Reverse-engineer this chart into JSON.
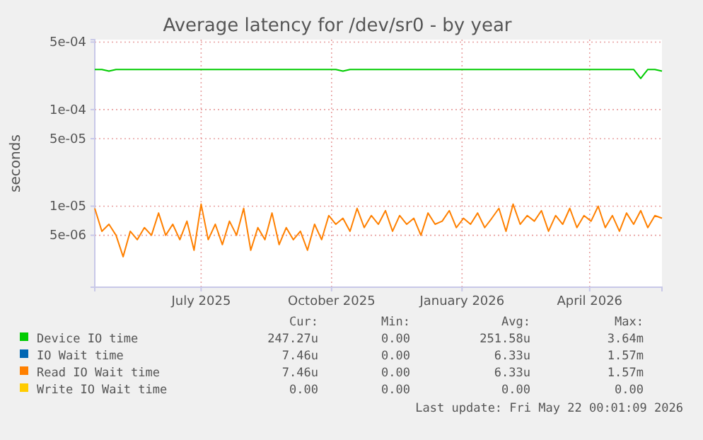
{
  "chart_data": {
    "type": "line",
    "title": "Average latency for /dev/sr0 - by year",
    "ylabel": "seconds",
    "log": true,
    "grid": true,
    "legend": "bottom",
    "xlim": [
      "2025-04-17",
      "2026-05-22"
    ],
    "xticks": [
      {
        "value": "2025-07-01",
        "label": "July 2025"
      },
      {
        "value": "2025-10-01",
        "label": "October 2025"
      },
      {
        "value": "2026-01-01",
        "label": "January 2026"
      },
      {
        "value": "2026-04-01",
        "label": "April 2026"
      }
    ],
    "ylim": [
      1.45e-06,
      0.00053
    ],
    "yticks": [
      {
        "value": 5e-06,
        "label": "5e-06"
      },
      {
        "value": 1e-05,
        "label": "1e-05"
      },
      {
        "value": 5e-05,
        "label": "5e-05"
      },
      {
        "value": 0.0001,
        "label": "1e-04"
      },
      {
        "value": 0.0005,
        "label": "5e-04"
      }
    ],
    "x": [
      "2025-04-17",
      "2025-04-22",
      "2025-04-27",
      "2025-05-02",
      "2025-05-07",
      "2025-05-12",
      "2025-05-17",
      "2025-05-22",
      "2025-05-27",
      "2025-06-01",
      "2025-06-06",
      "2025-06-11",
      "2025-06-16",
      "2025-06-21",
      "2025-06-26",
      "2025-07-01",
      "2025-07-06",
      "2025-07-11",
      "2025-07-16",
      "2025-07-21",
      "2025-07-26",
      "2025-07-31",
      "2025-08-05",
      "2025-08-10",
      "2025-08-15",
      "2025-08-20",
      "2025-08-25",
      "2025-08-30",
      "2025-09-04",
      "2025-09-09",
      "2025-09-14",
      "2025-09-19",
      "2025-09-24",
      "2025-09-29",
      "2025-10-04",
      "2025-10-09",
      "2025-10-14",
      "2025-10-19",
      "2025-10-24",
      "2025-10-29",
      "2025-11-03",
      "2025-11-08",
      "2025-11-13",
      "2025-11-18",
      "2025-11-23",
      "2025-11-28",
      "2025-12-03",
      "2025-12-08",
      "2025-12-13",
      "2025-12-18",
      "2025-12-23",
      "2025-12-28",
      "2026-01-02",
      "2026-01-07",
      "2026-01-12",
      "2026-01-17",
      "2026-01-22",
      "2026-01-27",
      "2026-02-01",
      "2026-02-06",
      "2026-02-11",
      "2026-02-16",
      "2026-02-21",
      "2026-02-26",
      "2026-03-03",
      "2026-03-08",
      "2026-03-13",
      "2026-03-18",
      "2026-03-23",
      "2026-03-28",
      "2026-04-02",
      "2026-04-07",
      "2026-04-12",
      "2026-04-17",
      "2026-04-22",
      "2026-04-27",
      "2026-05-02",
      "2026-05-07",
      "2026-05-12",
      "2026-05-17",
      "2026-05-22"
    ],
    "series": [
      {
        "name": "Device IO time",
        "color": "#00cc00",
        "values": [
          0.00026,
          0.00026,
          0.00025,
          0.00026,
          0.00026,
          0.00026,
          0.00026,
          0.00026,
          0.00026,
          0.00026,
          0.00026,
          0.00026,
          0.00026,
          0.00026,
          0.00026,
          0.00026,
          0.00026,
          0.00026,
          0.00026,
          0.00026,
          0.00026,
          0.00026,
          0.00026,
          0.00026,
          0.00026,
          0.00026,
          0.00026,
          0.00026,
          0.00026,
          0.00026,
          0.00026,
          0.00026,
          0.00026,
          0.00026,
          0.00026,
          0.00025,
          0.00026,
          0.00026,
          0.00026,
          0.00026,
          0.00026,
          0.00026,
          0.00026,
          0.00026,
          0.00026,
          0.00026,
          0.00026,
          0.00026,
          0.00026,
          0.00026,
          0.00026,
          0.00026,
          0.00026,
          0.00026,
          0.00026,
          0.00026,
          0.00026,
          0.00026,
          0.00026,
          0.00026,
          0.00026,
          0.00026,
          0.00026,
          0.00026,
          0.00026,
          0.00026,
          0.00026,
          0.00026,
          0.00026,
          0.00026,
          0.00026,
          0.00026,
          0.00026,
          0.00026,
          0.00026,
          0.00026,
          0.00026,
          0.00021,
          0.00026,
          0.00026,
          0.00025
        ]
      },
      {
        "name": "IO Wait time",
        "color": "#0066b3",
        "values": [
          null,
          null,
          null,
          null,
          null,
          null,
          null,
          null,
          null,
          null,
          null,
          null,
          null,
          null,
          null,
          null,
          null,
          null,
          null,
          null,
          null,
          null,
          null,
          null,
          null,
          null,
          null,
          null,
          null,
          null,
          null,
          null,
          null,
          null,
          null,
          null,
          null,
          null,
          null,
          null,
          null,
          null,
          null,
          null,
          null,
          null,
          null,
          null,
          null,
          null,
          null,
          null,
          null,
          null,
          null,
          null,
          null,
          null,
          null,
          null,
          null,
          null,
          null,
          null,
          null,
          null,
          null,
          null,
          null,
          null,
          null,
          null,
          null,
          null,
          null,
          null,
          null,
          null,
          null,
          null,
          null
        ]
      },
      {
        "name": "Read IO Wait time",
        "color": "#ff8000",
        "values": [
          9.5e-06,
          5.5e-06,
          6.5e-06,
          5e-06,
          3e-06,
          5.5e-06,
          4.5e-06,
          6e-06,
          5e-06,
          8.5e-06,
          5e-06,
          6.5e-06,
          4.5e-06,
          7e-06,
          3.5e-06,
          1.05e-05,
          4.5e-06,
          6.5e-06,
          4e-06,
          7e-06,
          5e-06,
          9.5e-06,
          3.5e-06,
          6e-06,
          4.5e-06,
          8.5e-06,
          4e-06,
          6e-06,
          4.5e-06,
          5.5e-06,
          3.5e-06,
          6.5e-06,
          4.5e-06,
          8e-06,
          6.5e-06,
          7.5e-06,
          5.5e-06,
          9.5e-06,
          6e-06,
          8e-06,
          6.5e-06,
          9e-06,
          5.5e-06,
          8e-06,
          6.5e-06,
          7.5e-06,
          5e-06,
          8.5e-06,
          6.5e-06,
          7e-06,
          9e-06,
          6e-06,
          7.5e-06,
          6.5e-06,
          8.5e-06,
          6e-06,
          7.5e-06,
          9.5e-06,
          5.5e-06,
          1.05e-05,
          6.5e-06,
          8e-06,
          7e-06,
          9e-06,
          5.5e-06,
          8e-06,
          6.5e-06,
          9.5e-06,
          6e-06,
          8e-06,
          7e-06,
          1e-05,
          6e-06,
          8e-06,
          5.5e-06,
          8.5e-06,
          6.5e-06,
          9e-06,
          6e-06,
          8e-06,
          7.5e-06
        ]
      },
      {
        "name": "Write IO Wait time",
        "color": "#ffcc00",
        "values": [
          null,
          null,
          null,
          null,
          null,
          null,
          null,
          null,
          null,
          null,
          null,
          null,
          null,
          null,
          null,
          null,
          null,
          null,
          null,
          null,
          null,
          null,
          null,
          null,
          null,
          null,
          null,
          null,
          null,
          null,
          null,
          null,
          null,
          null,
          null,
          null,
          null,
          null,
          null,
          null,
          null,
          null,
          null,
          null,
          null,
          null,
          null,
          null,
          null,
          null,
          null,
          null,
          null,
          null,
          null,
          null,
          null,
          null,
          null,
          null,
          null,
          null,
          null,
          null,
          null,
          null,
          null,
          null,
          null,
          null,
          null,
          null,
          null,
          null,
          null,
          null,
          null,
          null,
          null,
          null,
          null
        ]
      }
    ],
    "annotations": [
      "Cur:",
      "Min:",
      "Avg:",
      "Max:",
      "247.27u",
      "0.00",
      "251.58u",
      "3.64m",
      "7.46u",
      "0.00",
      "6.33u",
      "1.57m",
      "7.46u",
      "0.00",
      "6.33u",
      "1.57m",
      "0.00",
      "0.00",
      "0.00",
      "0.00",
      "Last update: Fri May 22 00:01:09 2026"
    ]
  }
}
